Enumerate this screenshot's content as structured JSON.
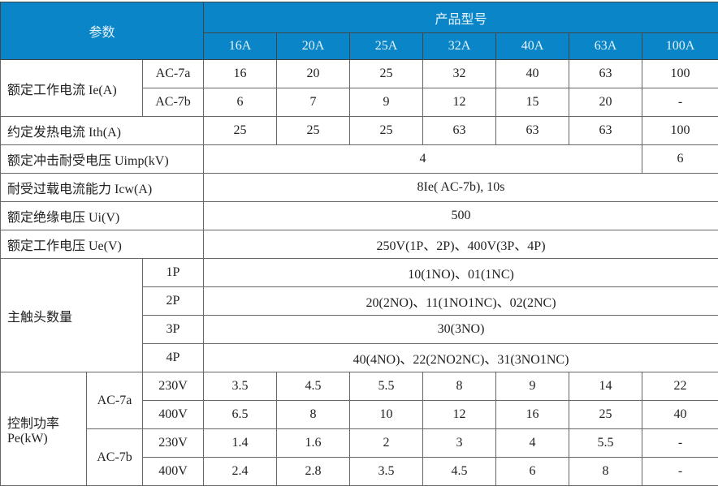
{
  "header": {
    "param": "参数",
    "product_model": "产品型号",
    "sizes": [
      "16A",
      "20A",
      "25A",
      "32A",
      "40A",
      "63A",
      "100A"
    ]
  },
  "rows": {
    "ie": {
      "label": "额定工作电流 Ie(A)",
      "ac7a": {
        "label": "AC-7a",
        "values": [
          "16",
          "20",
          "25",
          "32",
          "40",
          "63",
          "100"
        ]
      },
      "ac7b": {
        "label": "AC-7b",
        "values": [
          "6",
          "7",
          "9",
          "12",
          "15",
          "20",
          "-"
        ]
      }
    },
    "ith": {
      "label": "约定发热电流 Ith(A)",
      "values": [
        "25",
        "25",
        "25",
        "63",
        "63",
        "63",
        "100"
      ]
    },
    "uimp": {
      "label": "额定冲击耐受电压 Uimp(kV)",
      "value_main": "4",
      "value_100a": "6"
    },
    "icw": {
      "label": "耐受过载电流能力 Icw(A)",
      "value": "8Ie( AC-7b), 10s"
    },
    "ui": {
      "label": "额定绝缘电压 Ui(V)",
      "value": "500"
    },
    "ue": {
      "label": "额定工作电压 Ue(V)",
      "value": "250V(1P、2P)、400V(3P、4P)"
    },
    "contacts": {
      "label": "主触头数量",
      "items": [
        {
          "pole": "1P",
          "value": "10(1NO)、01(1NC)"
        },
        {
          "pole": "2P",
          "value": "20(2NO)、11(1NO1NC)、02(2NC)"
        },
        {
          "pole": "3P",
          "value": "30(3NO)"
        },
        {
          "pole": "4P",
          "value": "40(4NO)、22(2NO2NC)、31(3NO1NC)"
        }
      ]
    },
    "pe": {
      "label1": "控制功率",
      "label2": "Pe(kW)",
      "ac7a": {
        "label": "AC-7a",
        "v230": {
          "label": "230V",
          "values": [
            "3.5",
            "4.5",
            "5.5",
            "8",
            "9",
            "14",
            "22"
          ]
        },
        "v400": {
          "label": "400V",
          "values": [
            "6.5",
            "8",
            "10",
            "12",
            "16",
            "25",
            "40"
          ]
        }
      },
      "ac7b": {
        "label": "AC-7b",
        "v230": {
          "label": "230V",
          "values": [
            "1.4",
            "1.6",
            "2",
            "3",
            "4",
            "5.5",
            "-"
          ]
        },
        "v400": {
          "label": "400V",
          "values": [
            "2.4",
            "2.8",
            "3.5",
            "4.5",
            "6",
            "8",
            "-"
          ]
        }
      }
    }
  }
}
